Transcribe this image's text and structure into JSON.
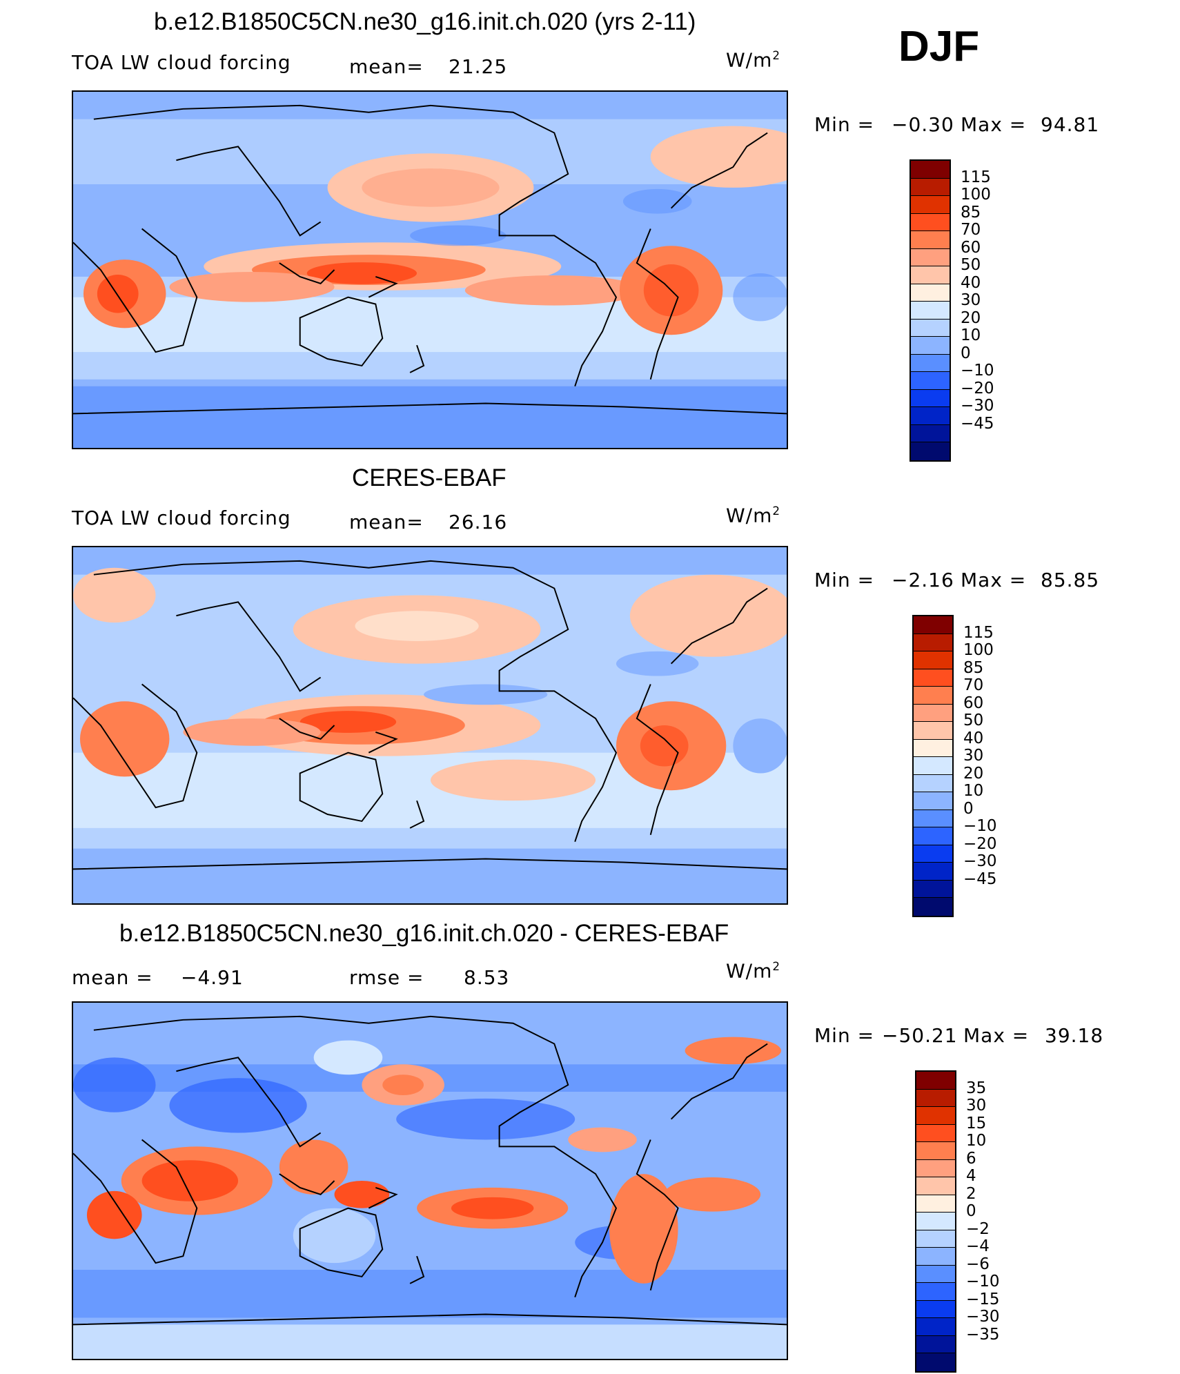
{
  "season": "DJF",
  "units_text": "W/m",
  "units_exp": "2",
  "panels": [
    {
      "title": "b.e12.B1850C5CN.ne30_g16.init.ch.020 (yrs 2-11)",
      "left_label": "TOA LW cloud forcing",
      "stat_label": "mean=",
      "stat_value": "21.25",
      "min_label": "Min =",
      "min_value": "−0.30",
      "max_label": "Max =",
      "max_value": "94.81"
    },
    {
      "title": "CERES-EBAF",
      "left_label": "TOA LW cloud forcing",
      "stat_label": "mean=",
      "stat_value": "26.16",
      "min_label": "Min =",
      "min_value": "−2.16",
      "max_label": "Max =",
      "max_value": "85.85"
    },
    {
      "title": "b.e12.B1850C5CN.ne30_g16.init.ch.020 - CERES-EBAF",
      "left_label": "mean =",
      "left_value": "−4.91",
      "stat_label": "rmse =",
      "stat_value": "8.53",
      "min_label": "Min =",
      "min_value": "−50.21",
      "max_label": "Max =",
      "max_value": "39.18"
    }
  ],
  "colorbar_fields": {
    "colors": [
      "#7f0000",
      "#b81c00",
      "#e03200",
      "#ff4f1f",
      "#ff7f4f",
      "#ffa07f",
      "#ffc5aa",
      "#fff0e0",
      "#d4e8ff",
      "#b5d2ff",
      "#8cb4ff",
      "#5a8fff",
      "#2d64ff",
      "#0a3cf0",
      "#0024c8",
      "#00149a",
      "#000a6e"
    ],
    "ticks": [
      "115",
      "100",
      "85",
      "70",
      "60",
      "50",
      "40",
      "30",
      "20",
      "10",
      "0",
      "−10",
      "−20",
      "−30",
      "−45"
    ]
  },
  "colorbar_diff": {
    "colors": [
      "#7f0000",
      "#b81c00",
      "#e03200",
      "#ff4f1f",
      "#ff7f4f",
      "#ffa07f",
      "#ffc5aa",
      "#fff0e0",
      "#d4e8ff",
      "#b5d2ff",
      "#8cb4ff",
      "#5a8fff",
      "#2d64ff",
      "#0a3cf0",
      "#0024c8",
      "#00149a",
      "#000a6e"
    ],
    "ticks": [
      "35",
      "30",
      "15",
      "10",
      "6",
      "4",
      "2",
      "0",
      "−2",
      "−4",
      "−6",
      "−10",
      "−15",
      "−30",
      "−35"
    ]
  }
}
